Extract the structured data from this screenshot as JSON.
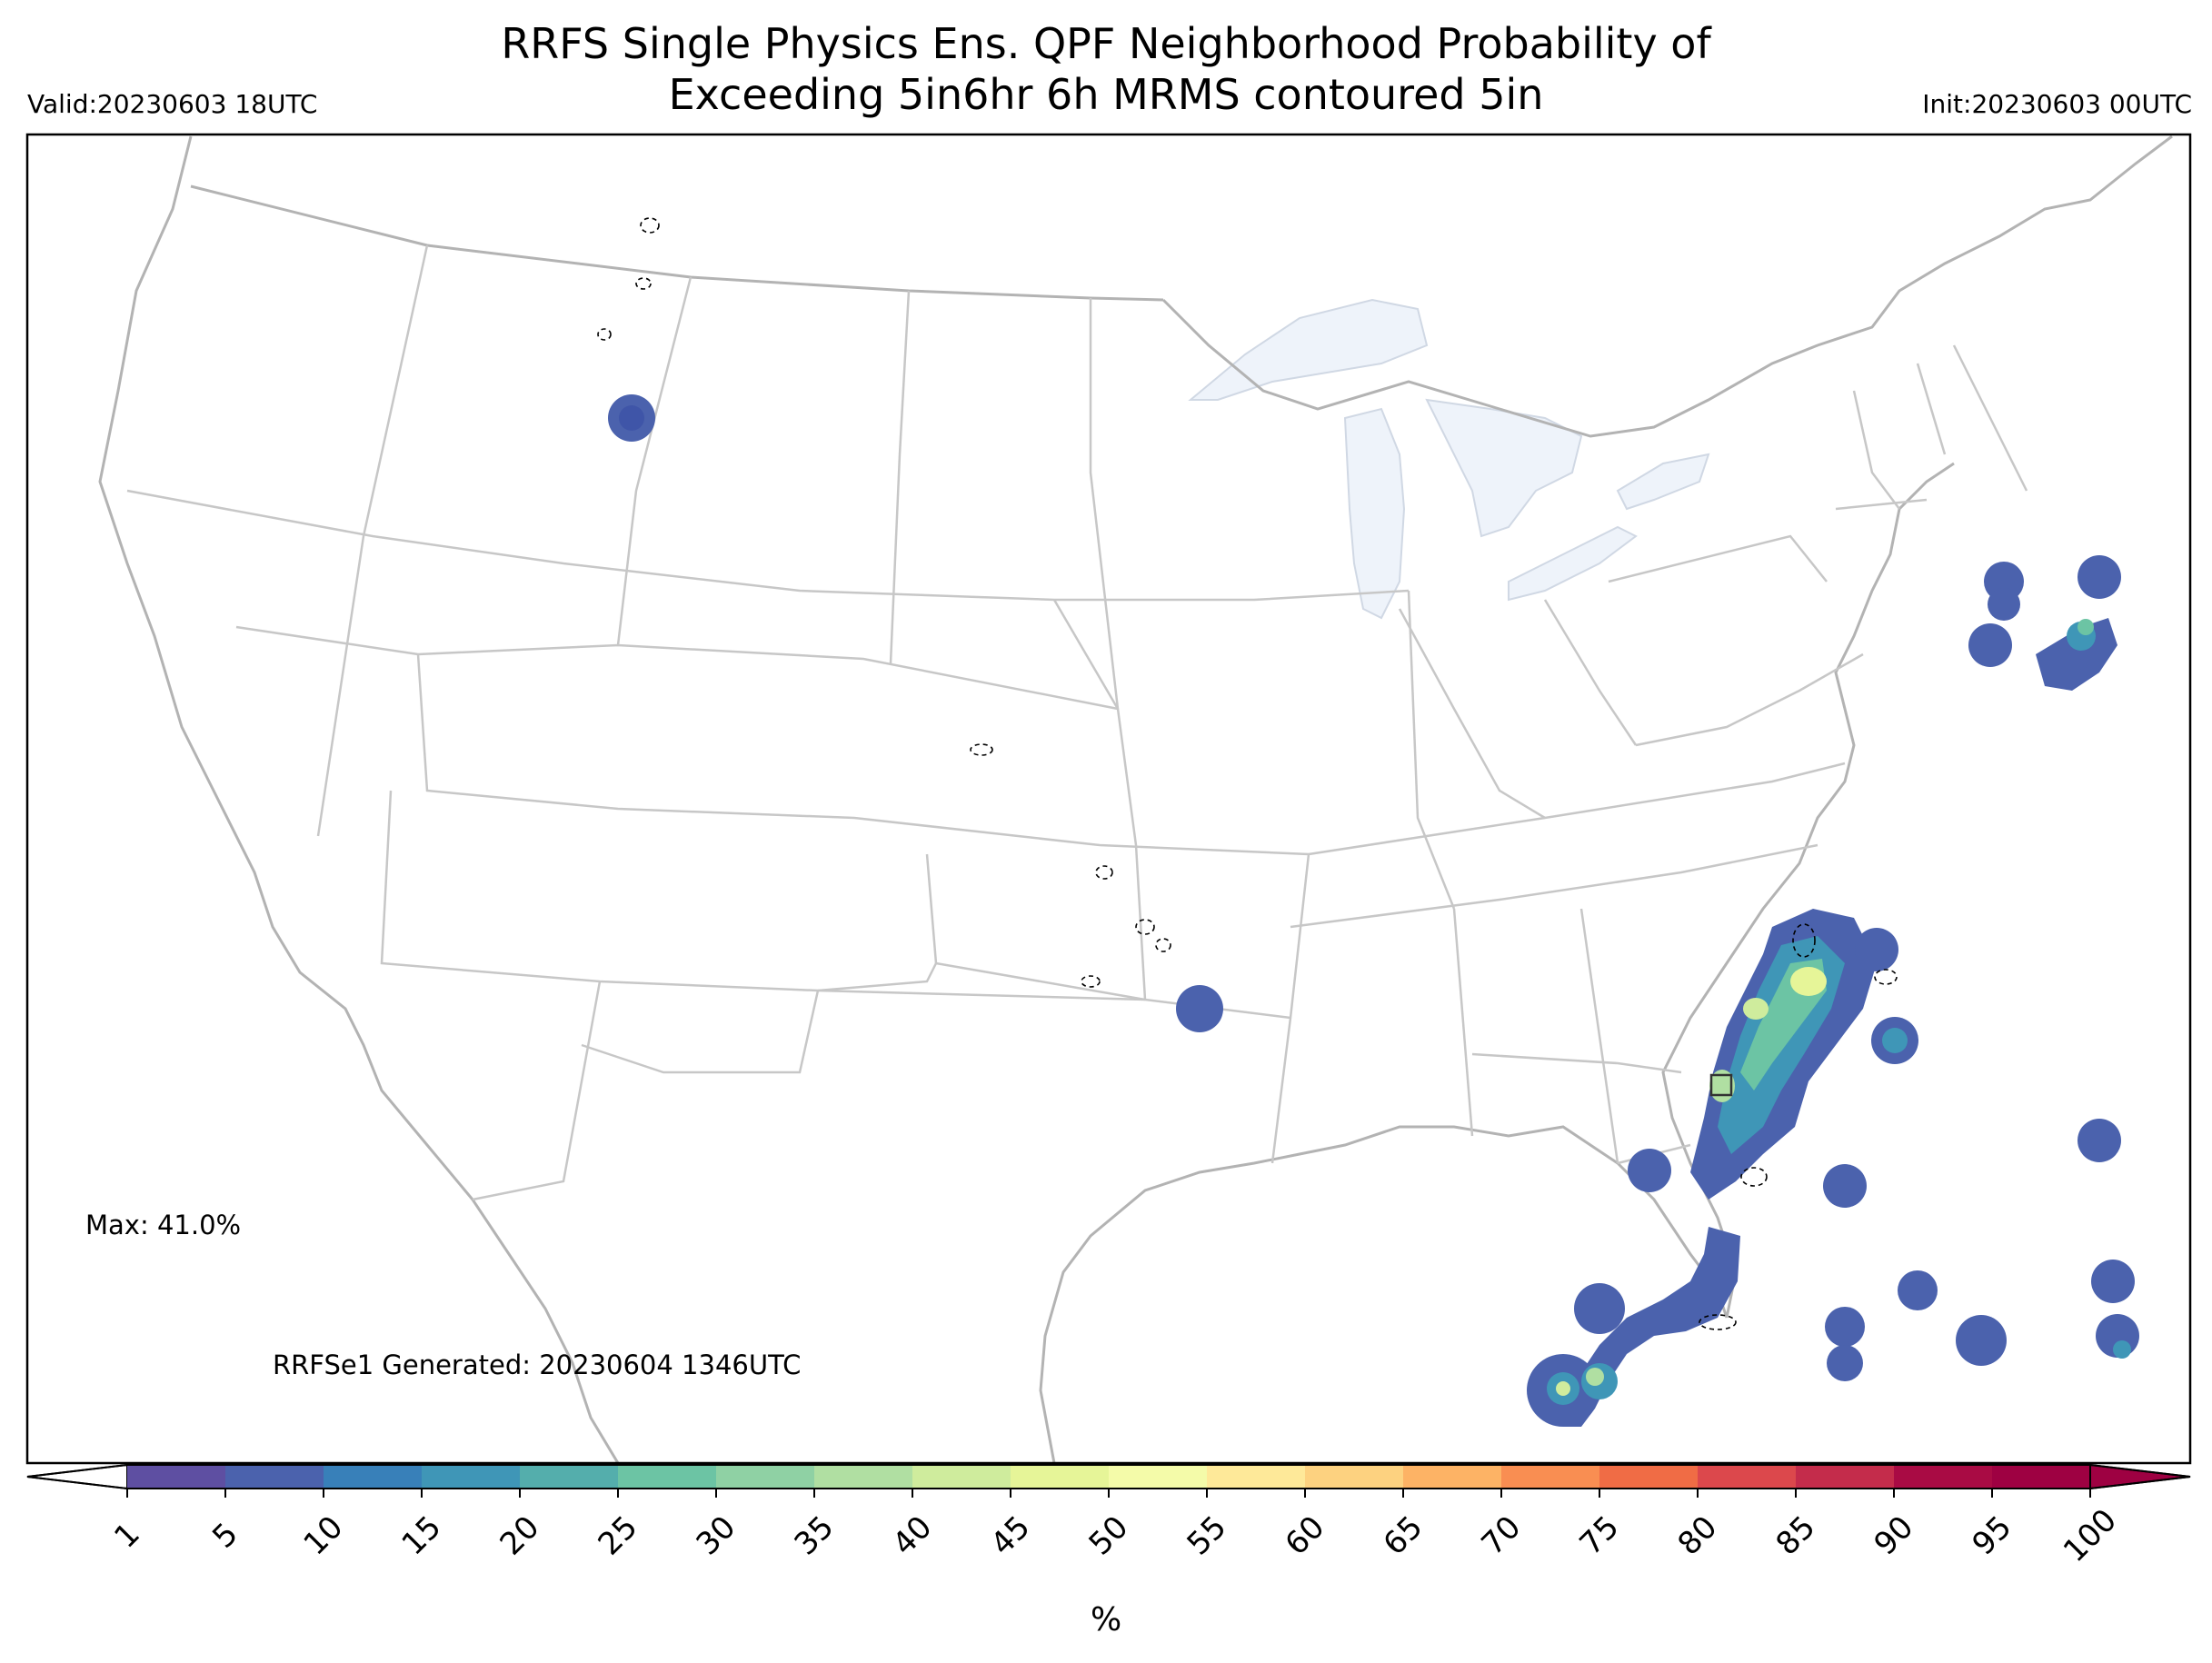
{
  "title_line1": "RRFS Single Physics Ens. QPF Neighborhood Probability of",
  "title_line2": "Exceeding 5in6hr 6h MRMS contoured 5in",
  "valid_label": "Valid:20230603 18UTC",
  "init_label": "Init:20230603 00UTC",
  "max_label": "Max: 41.0%",
  "generated_label": "RRFSe1 Generated: 20230604 1346UTC",
  "colorbar": {
    "unit": "%",
    "ticks": [
      "1",
      "5",
      "10",
      "15",
      "20",
      "25",
      "30",
      "35",
      "40",
      "45",
      "50",
      "55",
      "60",
      "65",
      "70",
      "75",
      "80",
      "85",
      "90",
      "95",
      "100"
    ],
    "colors": [
      "#5e4fa2",
      "#4b62ad",
      "#3880b9",
      "#3f96b7",
      "#54aeac",
      "#6cc4a4",
      "#8fd1a4",
      "#b0dfa2",
      "#cfec9d",
      "#e6f598",
      "#f4fba9",
      "#fee999",
      "#fdd280",
      "#fdb365",
      "#f98e52",
      "#f06c45",
      "#dc484c",
      "#c42c4b",
      "#a90b44",
      "#9e0142"
    ]
  },
  "map": {
    "lake_color": "#eef3fa",
    "boundary_color": "#c7c7c7",
    "coast_color": "#b3b3b3"
  },
  "probability_areas": [
    {
      "name": "montana-blob",
      "level": "5"
    },
    {
      "name": "arkansas-blob",
      "level": "5"
    },
    {
      "name": "florida-east-coast",
      "level": "45"
    },
    {
      "name": "florida-south",
      "level": "40"
    },
    {
      "name": "atlantic-northeast",
      "level": "25"
    },
    {
      "name": "bahamas",
      "level": "10"
    }
  ]
}
